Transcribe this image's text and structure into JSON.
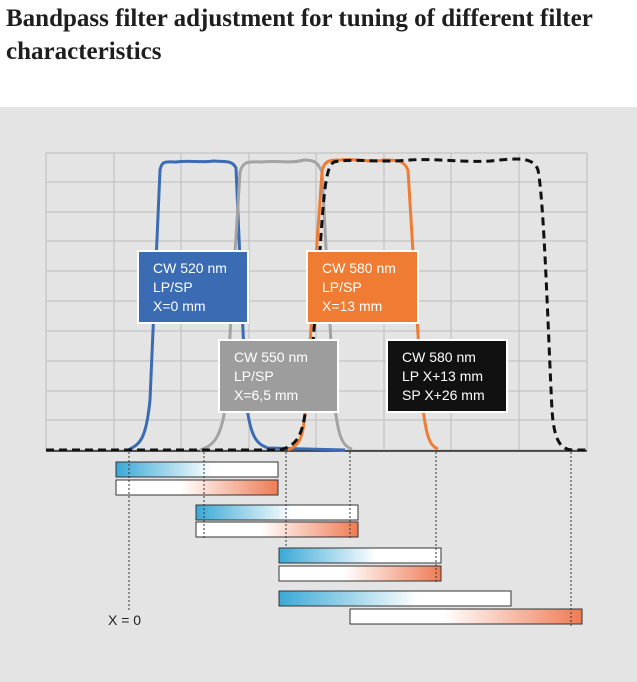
{
  "title": "Bandpass filter adjustment for tuning of different filter characteristics",
  "boxes": {
    "cw520": {
      "line1": "CW 520 nm",
      "line2": "LP/SP",
      "line3": "X=0 mm",
      "color": "#3a6bb3"
    },
    "cw550": {
      "line1": "CW 550 nm",
      "line2": "LP/SP",
      "line3": "X=6,5 mm",
      "color": "#9d9d9d"
    },
    "cw580": {
      "line1": "CW 580 nm",
      "line2": "LP/SP",
      "line3": "X=13 mm",
      "color": "#ef7c32"
    },
    "cw580split": {
      "line1": "CW 580 nm",
      "line2": "LP X+13 mm",
      "line3": "SP X+26 mm",
      "color": "#111111"
    }
  },
  "x_marker": "X = 0",
  "colors": {
    "blue_curve": "#3a6bb3",
    "grey_curve": "#a3a3a3",
    "orange_curve": "#ef7c32",
    "black_curve": "#111111",
    "lp_gradient": "#3aa9d6",
    "sp_gradient": "#ef7b55",
    "panel": "#e4e4e4"
  }
}
